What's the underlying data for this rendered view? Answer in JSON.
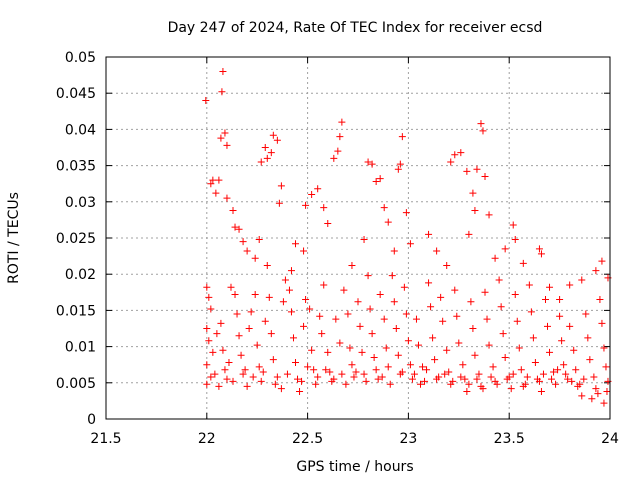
{
  "chart_data": {
    "type": "scatter",
    "title": "Day 247 of 2024, Rate Of TEC Index for receiver ecsd",
    "xlabel": "GPS time / hours",
    "ylabel": "ROTI / TECUs",
    "xlim": [
      21.5,
      24
    ],
    "ylim": [
      0,
      0.05
    ],
    "xticks": [
      "21.5",
      "22",
      "22.5",
      "23",
      "23.5",
      "24"
    ],
    "yticks": [
      "0",
      "0.005",
      "0.01",
      "0.015",
      "0.02",
      "0.025",
      "0.03",
      "0.035",
      "0.04",
      "0.045",
      "0.05"
    ],
    "grid": true,
    "marker": "+",
    "colors": {
      "points": "#ff0000",
      "grid": "#a0a0a0"
    },
    "series": [
      {
        "points": [
          [
            21.995,
            0.044
          ],
          [
            22.08,
            0.048
          ],
          [
            22.075,
            0.0452
          ],
          [
            22.07,
            0.0388
          ],
          [
            22.09,
            0.0395
          ],
          [
            22.1,
            0.0378
          ],
          [
            22.03,
            0.033
          ],
          [
            22.02,
            0.0325
          ],
          [
            22.06,
            0.033
          ],
          [
            22.045,
            0.0312
          ],
          [
            22.1,
            0.0305
          ],
          [
            22.13,
            0.0288
          ],
          [
            22.14,
            0.0265
          ],
          [
            22.16,
            0.0262
          ],
          [
            22.18,
            0.0245
          ],
          [
            22.2,
            0.0232
          ],
          [
            22.27,
            0.0355
          ],
          [
            22.3,
            0.036
          ],
          [
            22.29,
            0.0375
          ],
          [
            22.33,
            0.0392
          ],
          [
            22.35,
            0.0385
          ],
          [
            22.32,
            0.0368
          ],
          [
            22.37,
            0.0322
          ],
          [
            22.36,
            0.0298
          ],
          [
            22.26,
            0.0248
          ],
          [
            22.24,
            0.0222
          ],
          [
            22.3,
            0.0212
          ],
          [
            22.42,
            0.0205
          ],
          [
            22.44,
            0.0242
          ],
          [
            22.48,
            0.0232
          ],
          [
            22.49,
            0.0295
          ],
          [
            22.52,
            0.031
          ],
          [
            22.55,
            0.0318
          ],
          [
            22.58,
            0.0292
          ],
          [
            22.6,
            0.027
          ],
          [
            22.63,
            0.036
          ],
          [
            22.66,
            0.039
          ],
          [
            22.67,
            0.041
          ],
          [
            22.65,
            0.037
          ],
          [
            22.72,
            0.0212
          ],
          [
            22.78,
            0.0248
          ],
          [
            22.8,
            0.0355
          ],
          [
            22.82,
            0.0352
          ],
          [
            22.84,
            0.0328
          ],
          [
            22.86,
            0.0332
          ],
          [
            22.88,
            0.0292
          ],
          [
            22.9,
            0.0272
          ],
          [
            22.93,
            0.0232
          ],
          [
            22.95,
            0.0345
          ],
          [
            22.96,
            0.0352
          ],
          [
            22.97,
            0.039
          ],
          [
            22.99,
            0.0285
          ],
          [
            23.01,
            0.0242
          ],
          [
            23.1,
            0.0255
          ],
          [
            23.14,
            0.0232
          ],
          [
            23.19,
            0.0212
          ],
          [
            23.21,
            0.0355
          ],
          [
            23.23,
            0.0365
          ],
          [
            23.26,
            0.0368
          ],
          [
            23.29,
            0.0342
          ],
          [
            23.32,
            0.0312
          ],
          [
            23.34,
            0.0345
          ],
          [
            23.36,
            0.0408
          ],
          [
            23.37,
            0.0398
          ],
          [
            23.38,
            0.0335
          ],
          [
            23.33,
            0.0288
          ],
          [
            23.3,
            0.0255
          ],
          [
            23.4,
            0.0282
          ],
          [
            23.43,
            0.0222
          ],
          [
            23.48,
            0.0235
          ],
          [
            23.52,
            0.0268
          ],
          [
            23.53,
            0.0248
          ],
          [
            23.57,
            0.0215
          ],
          [
            23.65,
            0.0235
          ],
          [
            23.66,
            0.0228
          ],
          [
            23.7,
            0.0182
          ],
          [
            23.75,
            0.0165
          ],
          [
            23.8,
            0.0185
          ],
          [
            23.86,
            0.0192
          ],
          [
            23.93,
            0.0205
          ],
          [
            23.96,
            0.0218
          ],
          [
            23.99,
            0.0195
          ],
          [
            22.0,
            0.0182
          ],
          [
            22.01,
            0.0168
          ],
          [
            22.02,
            0.0152
          ],
          [
            22.0,
            0.0125
          ],
          [
            22.01,
            0.0108
          ],
          [
            22.03,
            0.0092
          ],
          [
            22.0,
            0.0075
          ],
          [
            22.02,
            0.0058
          ],
          [
            22.0,
            0.0048
          ],
          [
            22.05,
            0.0118
          ],
          [
            22.07,
            0.0132
          ],
          [
            22.08,
            0.0095
          ],
          [
            22.09,
            0.0068
          ],
          [
            22.1,
            0.0055
          ],
          [
            22.12,
            0.0182
          ],
          [
            22.14,
            0.0172
          ],
          [
            22.15,
            0.0145
          ],
          [
            22.16,
            0.0115
          ],
          [
            22.17,
            0.0088
          ],
          [
            22.18,
            0.0062
          ],
          [
            22.2,
            0.0045
          ],
          [
            22.21,
            0.0125
          ],
          [
            22.22,
            0.0148
          ],
          [
            22.24,
            0.0172
          ],
          [
            22.25,
            0.0102
          ],
          [
            22.26,
            0.0072
          ],
          [
            22.27,
            0.0052
          ],
          [
            22.29,
            0.0135
          ],
          [
            22.31,
            0.0168
          ],
          [
            22.32,
            0.0118
          ],
          [
            22.33,
            0.0082
          ],
          [
            22.35,
            0.0058
          ],
          [
            22.37,
            0.0042
          ],
          [
            22.38,
            0.0162
          ],
          [
            22.39,
            0.0192
          ],
          [
            22.41,
            0.0178
          ],
          [
            22.42,
            0.0148
          ],
          [
            22.43,
            0.0112
          ],
          [
            22.44,
            0.0078
          ],
          [
            22.45,
            0.0055
          ],
          [
            22.46,
            0.0038
          ],
          [
            22.48,
            0.0128
          ],
          [
            22.49,
            0.0165
          ],
          [
            22.51,
            0.0152
          ],
          [
            22.52,
            0.0095
          ],
          [
            22.53,
            0.0068
          ],
          [
            22.54,
            0.0048
          ],
          [
            22.56,
            0.0142
          ],
          [
            22.57,
            0.0118
          ],
          [
            22.58,
            0.0185
          ],
          [
            22.6,
            0.0092
          ],
          [
            22.61,
            0.0065
          ],
          [
            22.62,
            0.0052
          ],
          [
            22.64,
            0.0138
          ],
          [
            22.66,
            0.0105
          ],
          [
            22.68,
            0.0178
          ],
          [
            22.7,
            0.0145
          ],
          [
            22.71,
            0.0098
          ],
          [
            22.72,
            0.0075
          ],
          [
            22.73,
            0.0058
          ],
          [
            22.75,
            0.0162
          ],
          [
            22.76,
            0.0128
          ],
          [
            22.77,
            0.0092
          ],
          [
            22.78,
            0.0062
          ],
          [
            22.8,
            0.0198
          ],
          [
            22.81,
            0.0152
          ],
          [
            22.82,
            0.0118
          ],
          [
            22.83,
            0.0085
          ],
          [
            22.85,
            0.0055
          ],
          [
            22.86,
            0.0172
          ],
          [
            22.88,
            0.0138
          ],
          [
            22.89,
            0.0098
          ],
          [
            22.9,
            0.0072
          ],
          [
            22.92,
            0.0198
          ],
          [
            22.93,
            0.0162
          ],
          [
            22.94,
            0.0125
          ],
          [
            22.95,
            0.0088
          ],
          [
            22.96,
            0.0062
          ],
          [
            22.98,
            0.0182
          ],
          [
            22.99,
            0.0145
          ],
          [
            23.0,
            0.0108
          ],
          [
            23.01,
            0.0075
          ],
          [
            23.02,
            0.0055
          ],
          [
            23.04,
            0.0138
          ],
          [
            23.05,
            0.0102
          ],
          [
            23.07,
            0.0072
          ],
          [
            23.08,
            0.0052
          ],
          [
            23.1,
            0.0188
          ],
          [
            23.11,
            0.0155
          ],
          [
            23.12,
            0.0112
          ],
          [
            23.13,
            0.0082
          ],
          [
            23.15,
            0.0058
          ],
          [
            23.16,
            0.0168
          ],
          [
            23.17,
            0.0135
          ],
          [
            23.19,
            0.0095
          ],
          [
            23.2,
            0.0065
          ],
          [
            23.21,
            0.0048
          ],
          [
            23.23,
            0.0178
          ],
          [
            23.24,
            0.0142
          ],
          [
            23.25,
            0.0105
          ],
          [
            23.27,
            0.0075
          ],
          [
            23.28,
            0.0055
          ],
          [
            23.29,
            0.0038
          ],
          [
            23.31,
            0.0162
          ],
          [
            23.32,
            0.0125
          ],
          [
            23.33,
            0.0088
          ],
          [
            23.35,
            0.0062
          ],
          [
            23.36,
            0.0045
          ],
          [
            23.38,
            0.0175
          ],
          [
            23.39,
            0.0138
          ],
          [
            23.4,
            0.0102
          ],
          [
            23.42,
            0.0072
          ],
          [
            23.43,
            0.0052
          ],
          [
            23.45,
            0.0192
          ],
          [
            23.46,
            0.0155
          ],
          [
            23.47,
            0.0118
          ],
          [
            23.48,
            0.0085
          ],
          [
            23.5,
            0.0058
          ],
          [
            23.51,
            0.0042
          ],
          [
            23.53,
            0.0172
          ],
          [
            23.54,
            0.0135
          ],
          [
            23.55,
            0.0098
          ],
          [
            23.56,
            0.0068
          ],
          [
            23.58,
            0.0048
          ],
          [
            23.6,
            0.0185
          ],
          [
            23.61,
            0.0148
          ],
          [
            23.62,
            0.0112
          ],
          [
            23.63,
            0.0078
          ],
          [
            23.64,
            0.0055
          ],
          [
            23.66,
            0.0038
          ],
          [
            23.68,
            0.0165
          ],
          [
            23.69,
            0.0128
          ],
          [
            23.7,
            0.0092
          ],
          [
            23.72,
            0.0065
          ],
          [
            23.73,
            0.0048
          ],
          [
            23.75,
            0.0142
          ],
          [
            23.76,
            0.0108
          ],
          [
            23.77,
            0.0075
          ],
          [
            23.79,
            0.0055
          ],
          [
            23.8,
            0.0128
          ],
          [
            23.82,
            0.0095
          ],
          [
            23.83,
            0.0068
          ],
          [
            23.85,
            0.0048
          ],
          [
            23.86,
            0.0032
          ],
          [
            23.88,
            0.0145
          ],
          [
            23.89,
            0.0112
          ],
          [
            23.9,
            0.0082
          ],
          [
            23.92,
            0.0058
          ],
          [
            23.93,
            0.0042
          ],
          [
            23.95,
            0.0165
          ],
          [
            23.96,
            0.0132
          ],
          [
            23.97,
            0.0098
          ],
          [
            23.98,
            0.0072
          ],
          [
            23.99,
            0.0052
          ],
          [
            22.04,
            0.0062
          ],
          [
            22.06,
            0.0045
          ],
          [
            22.11,
            0.0078
          ],
          [
            22.13,
            0.0052
          ],
          [
            22.19,
            0.0068
          ],
          [
            22.23,
            0.0058
          ],
          [
            22.28,
            0.0065
          ],
          [
            22.34,
            0.0048
          ],
          [
            22.4,
            0.0062
          ],
          [
            22.47,
            0.0052
          ],
          [
            22.5,
            0.0072
          ],
          [
            22.55,
            0.0058
          ],
          [
            22.59,
            0.0068
          ],
          [
            22.63,
            0.0055
          ],
          [
            22.67,
            0.0062
          ],
          [
            22.69,
            0.0048
          ],
          [
            22.74,
            0.0065
          ],
          [
            22.79,
            0.0052
          ],
          [
            22.84,
            0.0068
          ],
          [
            22.87,
            0.0058
          ],
          [
            22.91,
            0.0048
          ],
          [
            22.97,
            0.0065
          ],
          [
            23.03,
            0.0062
          ],
          [
            23.06,
            0.0048
          ],
          [
            23.09,
            0.0068
          ],
          [
            23.14,
            0.0055
          ],
          [
            23.18,
            0.0062
          ],
          [
            23.22,
            0.0052
          ],
          [
            23.26,
            0.0058
          ],
          [
            23.3,
            0.0048
          ],
          [
            23.34,
            0.0055
          ],
          [
            23.37,
            0.0042
          ],
          [
            23.41,
            0.0058
          ],
          [
            23.44,
            0.0048
          ],
          [
            23.49,
            0.0055
          ],
          [
            23.52,
            0.0062
          ],
          [
            23.57,
            0.0045
          ],
          [
            23.59,
            0.0058
          ],
          [
            23.65,
            0.0052
          ],
          [
            23.67,
            0.0062
          ],
          [
            23.71,
            0.0055
          ],
          [
            23.74,
            0.0068
          ],
          [
            23.78,
            0.0062
          ],
          [
            23.81,
            0.0052
          ],
          [
            23.84,
            0.0045
          ],
          [
            23.87,
            0.0055
          ],
          [
            23.91,
            0.0028
          ],
          [
            23.94,
            0.0035
          ],
          [
            23.97,
            0.0022
          ],
          [
            23.985,
            0.0038
          ]
        ]
      }
    ]
  }
}
